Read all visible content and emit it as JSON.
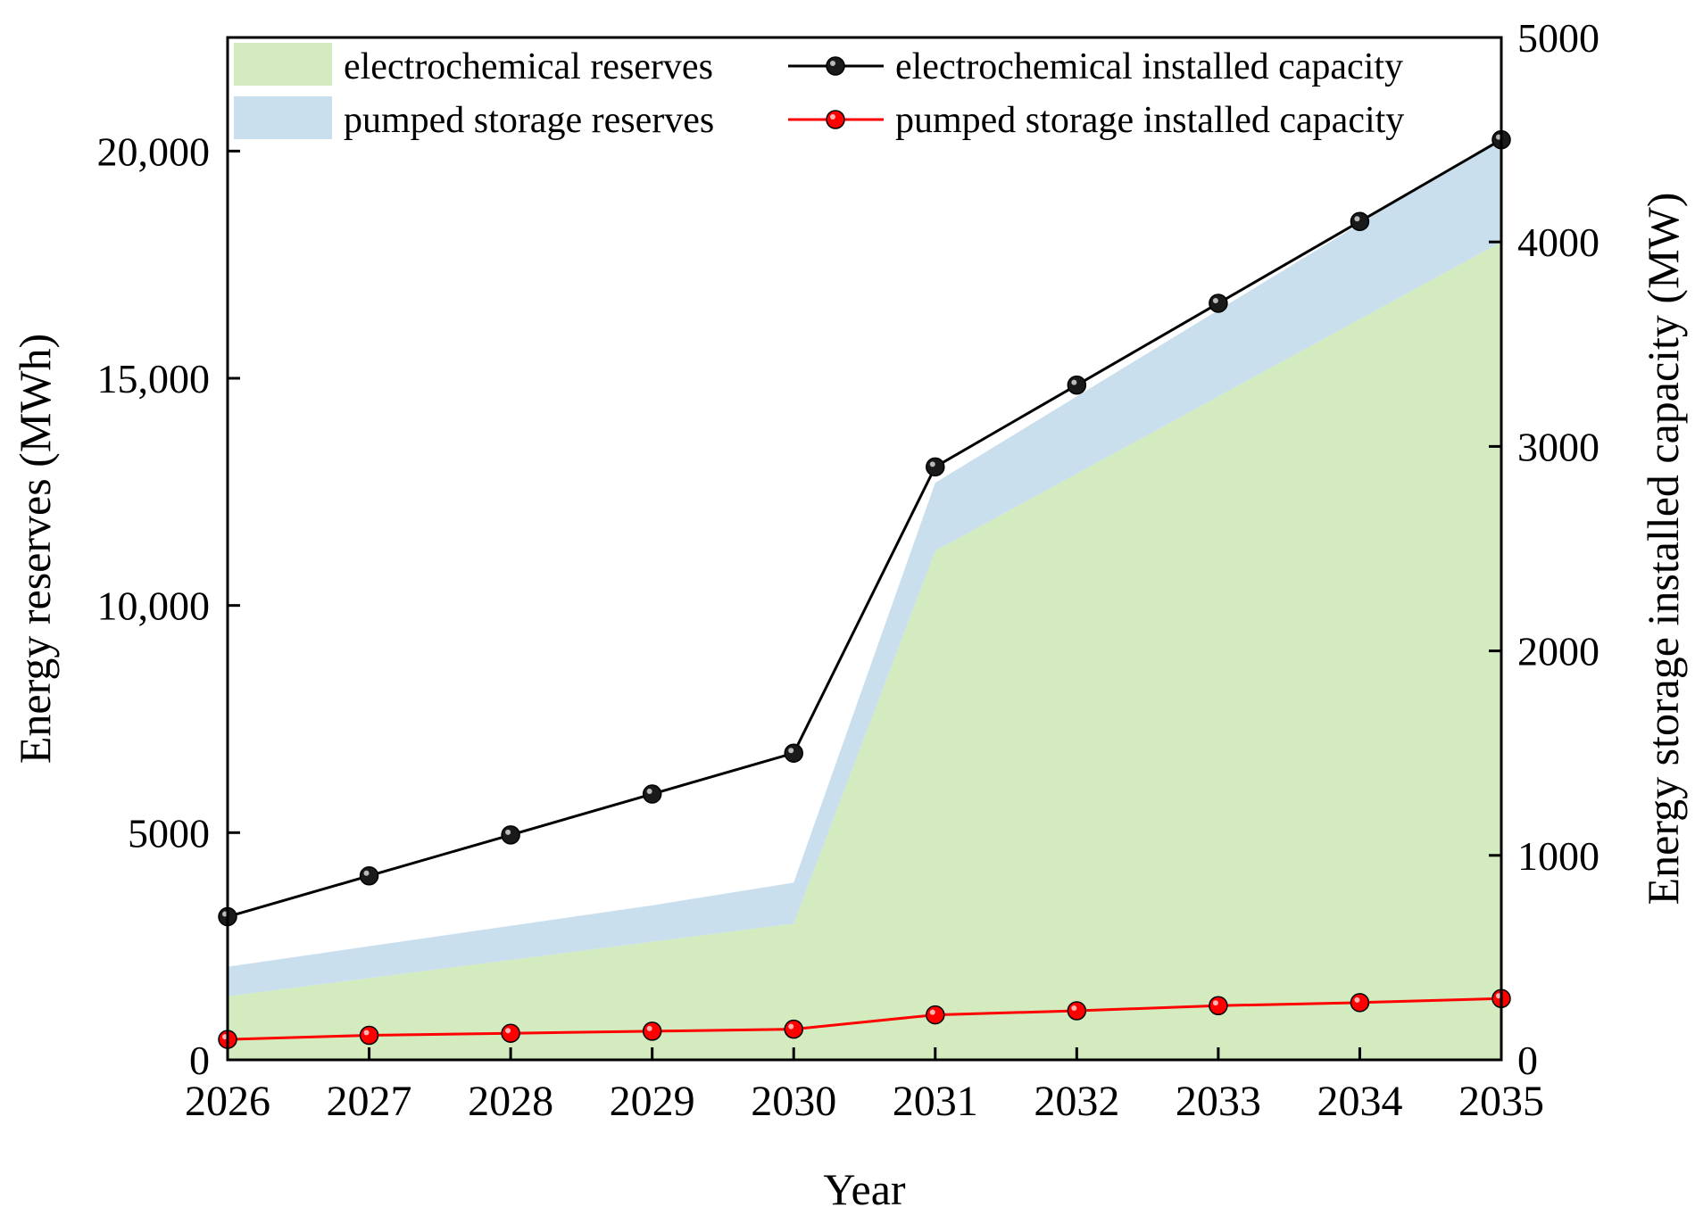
{
  "chart_data": {
    "type": "area+line",
    "title": "",
    "xlabel": "Year",
    "ylabel_left": "Energy reserves (MWh)",
    "ylabel_right": "Energy storage installed capacity (MW)",
    "x": [
      2026,
      2027,
      2028,
      2029,
      2030,
      2031,
      2032,
      2033,
      2034,
      2035
    ],
    "x_tick_labels": [
      "2026",
      "2027",
      "2028",
      "2029",
      "2030",
      "2031",
      "2032",
      "2033",
      "2034",
      "2035"
    ],
    "ylim_left": [
      0,
      22500
    ],
    "ylim_right": [
      0,
      5000
    ],
    "yticks_left": [
      0,
      5000,
      10000,
      15000,
      20000
    ],
    "ytick_labels_left": [
      "0",
      "5000",
      "10,000",
      "15,000",
      "20,000"
    ],
    "yticks_right": [
      0,
      1000,
      2000,
      3000,
      4000,
      5000
    ],
    "ytick_labels_right": [
      "0",
      "1000",
      "2000",
      "3000",
      "4000",
      "5000"
    ],
    "area_series": [
      {
        "name": "electrochemical reserves",
        "axis": "left",
        "color": "#d3ebbf",
        "values": [
          1400,
          1800,
          2200,
          2600,
          3000,
          11200,
          12900,
          14600,
          16300,
          18000
        ]
      },
      {
        "name": "pumped storage reserves",
        "axis": "left",
        "stacked": true,
        "color": "#c9dfee",
        "values": [
          650,
          700,
          750,
          800,
          900,
          1500,
          1700,
          1900,
          2100,
          2300
        ]
      }
    ],
    "line_series": [
      {
        "name": "electrochemical installed capacity",
        "axis": "right",
        "color": "#000000",
        "marker_color": "#1a1a1a",
        "values": [
          700,
          900,
          1100,
          1300,
          1500,
          2900,
          3300,
          3700,
          4100,
          4500
        ]
      },
      {
        "name": "pumped storage installed capacity",
        "axis": "right",
        "color": "#ff0000",
        "marker_color": "#ff0000",
        "values": [
          100,
          120,
          130,
          140,
          150,
          220,
          240,
          265,
          280,
          300
        ]
      }
    ],
    "legend": {
      "position": "top",
      "entries": [
        "electrochemical reserves",
        "electrochemical installed capacity",
        "pumped storage reserves",
        "pumped storage installed capacity"
      ]
    }
  }
}
